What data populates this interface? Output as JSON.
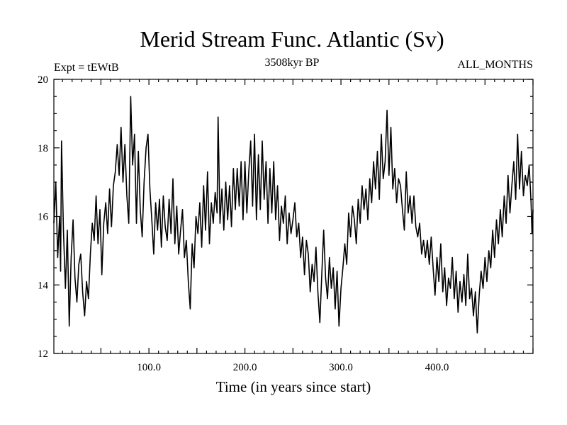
{
  "chart_data": {
    "type": "line",
    "title": "Merid Stream Func. Atlantic (Sv)",
    "subtitle": "3508kyr BP",
    "experiment_label": "Expt = tEWtB",
    "period_label": "ALL_MONTHS",
    "xlabel": "Time (in years since start)",
    "ylabel": "",
    "xlim": [
      1,
      500
    ],
    "ylim": [
      12,
      20
    ],
    "x_ticks": [
      100,
      200,
      300,
      400
    ],
    "x_tick_labels": [
      "100.0",
      "200.0",
      "300.0",
      "400.0"
    ],
    "y_ticks": [
      12,
      14,
      16,
      18,
      20
    ],
    "y_tick_labels": [
      "12",
      "14",
      "16",
      "18",
      "20"
    ],
    "grid": false,
    "legend": "none",
    "series": [
      {
        "name": "Merid Stream Func. Atlantic",
        "points": [
          [
            1,
            15.8
          ],
          [
            3,
            17.0
          ],
          [
            5,
            14.8
          ],
          [
            7,
            16.0
          ],
          [
            8,
            14.4
          ],
          [
            9,
            18.2
          ],
          [
            11,
            15.6
          ],
          [
            13,
            13.9
          ],
          [
            15,
            15.6
          ],
          [
            17,
            12.8
          ],
          [
            19,
            14.8
          ],
          [
            21,
            15.9
          ],
          [
            23,
            14.2
          ],
          [
            25,
            13.5
          ],
          [
            27,
            14.6
          ],
          [
            29,
            14.9
          ],
          [
            31,
            13.8
          ],
          [
            33,
            13.1
          ],
          [
            35,
            14.1
          ],
          [
            37,
            13.6
          ],
          [
            39,
            14.9
          ],
          [
            41,
            15.8
          ],
          [
            43,
            15.3
          ],
          [
            45,
            16.6
          ],
          [
            47,
            15.2
          ],
          [
            49,
            16.2
          ],
          [
            51,
            14.3
          ],
          [
            53,
            15.8
          ],
          [
            55,
            16.4
          ],
          [
            57,
            15.5
          ],
          [
            59,
            16.8
          ],
          [
            61,
            15.7
          ],
          [
            63,
            16.9
          ],
          [
            65,
            17.3
          ],
          [
            67,
            18.1
          ],
          [
            69,
            17.2
          ],
          [
            71,
            18.6
          ],
          [
            73,
            17.0
          ],
          [
            75,
            18.1
          ],
          [
            77,
            16.6
          ],
          [
            79,
            15.8
          ],
          [
            81,
            19.5
          ],
          [
            83,
            17.5
          ],
          [
            85,
            18.4
          ],
          [
            87,
            15.8
          ],
          [
            89,
            17.9
          ],
          [
            91,
            16.2
          ],
          [
            93,
            15.4
          ],
          [
            95,
            17.0
          ],
          [
            97,
            18.0
          ],
          [
            99,
            18.4
          ],
          [
            101,
            16.8
          ],
          [
            103,
            15.9
          ],
          [
            105,
            14.9
          ],
          [
            107,
            16.4
          ],
          [
            109,
            15.6
          ],
          [
            111,
            16.5
          ],
          [
            113,
            15.1
          ],
          [
            115,
            16.6
          ],
          [
            117,
            15.7
          ],
          [
            119,
            15.3
          ],
          [
            121,
            16.5
          ],
          [
            123,
            15.5
          ],
          [
            125,
            17.1
          ],
          [
            127,
            15.2
          ],
          [
            129,
            16.3
          ],
          [
            131,
            14.9
          ],
          [
            133,
            15.6
          ],
          [
            135,
            16.2
          ],
          [
            137,
            14.8
          ],
          [
            139,
            15.3
          ],
          [
            141,
            14.1
          ],
          [
            143,
            13.3
          ],
          [
            145,
            15.2
          ],
          [
            147,
            14.5
          ],
          [
            149,
            16.0
          ],
          [
            151,
            15.5
          ],
          [
            153,
            16.4
          ],
          [
            155,
            15.1
          ],
          [
            157,
            16.9
          ],
          [
            159,
            15.6
          ],
          [
            161,
            17.3
          ],
          [
            163,
            15.2
          ],
          [
            165,
            16.4
          ],
          [
            167,
            15.8
          ],
          [
            169,
            16.7
          ],
          [
            171,
            16.1
          ],
          [
            172,
            18.9
          ],
          [
            174,
            15.8
          ],
          [
            176,
            16.8
          ],
          [
            178,
            15.6
          ],
          [
            180,
            17.0
          ],
          [
            182,
            15.9
          ],
          [
            184,
            16.9
          ],
          [
            186,
            15.7
          ],
          [
            188,
            17.4
          ],
          [
            190,
            16.2
          ],
          [
            192,
            17.4
          ],
          [
            194,
            16.3
          ],
          [
            196,
            17.6
          ],
          [
            198,
            15.9
          ],
          [
            200,
            17.6
          ],
          [
            202,
            16.1
          ],
          [
            204,
            17.3
          ],
          [
            206,
            18.2
          ],
          [
            208,
            16.3
          ],
          [
            210,
            18.4
          ],
          [
            212,
            15.9
          ],
          [
            214,
            17.8
          ],
          [
            216,
            16.2
          ],
          [
            218,
            18.2
          ],
          [
            220,
            16.5
          ],
          [
            222,
            17.6
          ],
          [
            224,
            15.8
          ],
          [
            226,
            17.4
          ],
          [
            228,
            16.1
          ],
          [
            230,
            17.6
          ],
          [
            232,
            15.9
          ],
          [
            234,
            16.9
          ],
          [
            236,
            15.3
          ],
          [
            238,
            16.3
          ],
          [
            240,
            15.8
          ],
          [
            242,
            16.6
          ],
          [
            244,
            15.2
          ],
          [
            246,
            16.1
          ],
          [
            248,
            15.5
          ],
          [
            250,
            15.9
          ],
          [
            252,
            16.4
          ],
          [
            254,
            15.4
          ],
          [
            256,
            15.8
          ],
          [
            258,
            14.8
          ],
          [
            260,
            15.4
          ],
          [
            262,
            14.3
          ],
          [
            264,
            15.3
          ],
          [
            266,
            14.9
          ],
          [
            268,
            13.8
          ],
          [
            270,
            14.6
          ],
          [
            272,
            14.1
          ],
          [
            274,
            15.1
          ],
          [
            276,
            13.8
          ],
          [
            278,
            12.9
          ],
          [
            280,
            14.3
          ],
          [
            282,
            15.6
          ],
          [
            284,
            14.2
          ],
          [
            286,
            13.6
          ],
          [
            288,
            14.8
          ],
          [
            290,
            13.9
          ],
          [
            292,
            14.5
          ],
          [
            294,
            13.3
          ],
          [
            296,
            14.4
          ],
          [
            298,
            12.8
          ],
          [
            300,
            13.9
          ],
          [
            302,
            14.5
          ],
          [
            304,
            15.2
          ],
          [
            306,
            14.6
          ],
          [
            308,
            16.1
          ],
          [
            310,
            15.4
          ],
          [
            312,
            16.3
          ],
          [
            314,
            15.9
          ],
          [
            316,
            15.2
          ],
          [
            318,
            16.5
          ],
          [
            320,
            15.8
          ],
          [
            322,
            16.9
          ],
          [
            324,
            16.2
          ],
          [
            326,
            16.8
          ],
          [
            328,
            15.9
          ],
          [
            330,
            17.1
          ],
          [
            332,
            16.4
          ],
          [
            334,
            17.6
          ],
          [
            336,
            16.8
          ],
          [
            338,
            17.9
          ],
          [
            340,
            16.5
          ],
          [
            342,
            18.4
          ],
          [
            344,
            17.1
          ],
          [
            346,
            17.6
          ],
          [
            348,
            19.1
          ],
          [
            350,
            17.2
          ],
          [
            352,
            18.6
          ],
          [
            354,
            16.8
          ],
          [
            356,
            17.4
          ],
          [
            358,
            16.4
          ],
          [
            360,
            17.1
          ],
          [
            362,
            16.9
          ],
          [
            364,
            16.2
          ],
          [
            366,
            15.6
          ],
          [
            368,
            17.3
          ],
          [
            370,
            16.1
          ],
          [
            372,
            16.6
          ],
          [
            374,
            15.8
          ],
          [
            376,
            16.6
          ],
          [
            378,
            15.7
          ],
          [
            380,
            15.4
          ],
          [
            382,
            15.8
          ],
          [
            384,
            14.9
          ],
          [
            386,
            15.3
          ],
          [
            388,
            14.8
          ],
          [
            390,
            15.3
          ],
          [
            392,
            14.6
          ],
          [
            394,
            15.4
          ],
          [
            396,
            14.5
          ],
          [
            398,
            13.7
          ],
          [
            400,
            14.8
          ],
          [
            402,
            14.1
          ],
          [
            404,
            15.2
          ],
          [
            406,
            13.8
          ],
          [
            408,
            14.5
          ],
          [
            410,
            13.4
          ],
          [
            412,
            14.2
          ],
          [
            414,
            13.9
          ],
          [
            416,
            14.8
          ],
          [
            418,
            13.6
          ],
          [
            420,
            14.4
          ],
          [
            422,
            13.2
          ],
          [
            424,
            14.1
          ],
          [
            426,
            13.5
          ],
          [
            428,
            14.3
          ],
          [
            430,
            13.4
          ],
          [
            432,
            14.9
          ],
          [
            434,
            13.6
          ],
          [
            436,
            13.9
          ],
          [
            438,
            13.1
          ],
          [
            440,
            13.8
          ],
          [
            442,
            12.6
          ],
          [
            444,
            13.7
          ],
          [
            446,
            14.4
          ],
          [
            448,
            13.9
          ],
          [
            450,
            14.8
          ],
          [
            452,
            14.1
          ],
          [
            454,
            15.0
          ],
          [
            456,
            14.5
          ],
          [
            458,
            15.6
          ],
          [
            460,
            14.8
          ],
          [
            462,
            15.9
          ],
          [
            464,
            15.2
          ],
          [
            466,
            16.2
          ],
          [
            468,
            15.4
          ],
          [
            470,
            16.6
          ],
          [
            472,
            15.8
          ],
          [
            474,
            17.2
          ],
          [
            476,
            16.1
          ],
          [
            478,
            16.9
          ],
          [
            480,
            17.6
          ],
          [
            482,
            16.5
          ],
          [
            484,
            18.4
          ],
          [
            486,
            16.8
          ],
          [
            488,
            17.9
          ],
          [
            490,
            16.6
          ],
          [
            492,
            17.2
          ],
          [
            494,
            16.9
          ],
          [
            496,
            17.5
          ],
          [
            498,
            16.4
          ],
          [
            499,
            15.5
          ],
          [
            500,
            16.2
          ]
        ]
      }
    ]
  }
}
